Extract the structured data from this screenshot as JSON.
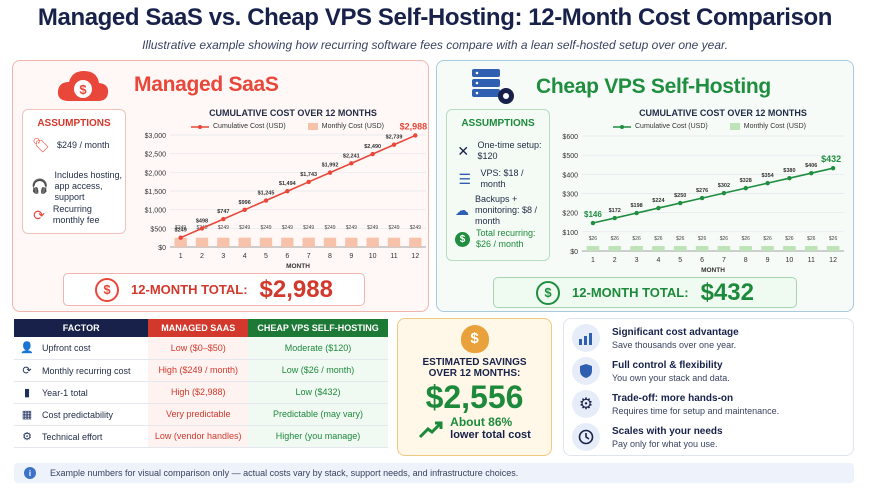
{
  "title": "Managed SaaS vs. Cheap VPS Self-Hosting: 12-Month Cost Comparison",
  "subtitle": "Illustrative example showing how recurring software fees compare with a lean self-hosted setup over one year.",
  "colors": {
    "saas": "#e8473a",
    "vps": "#1f8e3f",
    "navy": "#17214a"
  },
  "saas": {
    "heading": "Managed SaaS",
    "assumptions_title": "ASSUMPTIONS",
    "assumptions": [
      {
        "icon": "price-tag-icon",
        "text": "$249 / month"
      },
      {
        "icon": "headset-icon",
        "text": "Includes hosting, app access, support"
      },
      {
        "icon": "recurring-icon",
        "text": "Recurring monthly fee"
      }
    ],
    "total_label": "12-MONTH TOTAL:",
    "total_value": "$2,988"
  },
  "vps": {
    "heading": "Cheap VPS Self-Hosting",
    "assumptions_title": "ASSUMPTIONS",
    "assumptions": [
      {
        "icon": "tools-icon",
        "text": "One-time setup: $120"
      },
      {
        "icon": "server-icon",
        "text": "VPS: $18 / month"
      },
      {
        "icon": "cloud-backup-icon",
        "text": "Backups + monitoring: $8 / month"
      },
      {
        "icon": "dollar-coin-icon",
        "text": "Total recurring: $26 / month"
      }
    ],
    "total_label": "12-MONTH TOTAL:",
    "total_value": "$432"
  },
  "chart_data": [
    {
      "type": "bar",
      "title": "CUMULATIVE COST OVER 12 MONTHS",
      "xlabel": "MONTH",
      "categories": [
        "1",
        "2",
        "3",
        "4",
        "5",
        "6",
        "7",
        "8",
        "9",
        "10",
        "11",
        "12"
      ],
      "series": [
        {
          "name": "Cumulative Cost (USD)",
          "kind": "line",
          "color": "#e8473a",
          "values": [
            249,
            498,
            747,
            996,
            1245,
            1494,
            1743,
            1992,
            2241,
            2490,
            2739,
            2988
          ],
          "labels": [
            "$249",
            "$498",
            "$747",
            "$996",
            "$1,245",
            "$1,494",
            "$1,743",
            "$1,992",
            "$2,241",
            "$2,490",
            "$2,739",
            "$2,988"
          ]
        },
        {
          "name": "Monthly Cost (USD)",
          "kind": "bar",
          "color": "#f7c2aa",
          "values": [
            249,
            249,
            249,
            249,
            249,
            249,
            249,
            249,
            249,
            249,
            249,
            249
          ],
          "labels": [
            "$249",
            "$249",
            "$249",
            "$249",
            "$249",
            "$249",
            "$249",
            "$249",
            "$249",
            "$249",
            "$249",
            "$249"
          ]
        }
      ],
      "ylim": [
        0,
        3000
      ],
      "yticks": [
        "$0",
        "$500",
        "$1,000",
        "$1,500",
        "$2,000",
        "$2,500",
        "$3,000"
      ],
      "grid": true,
      "legend": "top"
    },
    {
      "type": "bar",
      "title": "CUMULATIVE COST OVER 12 MONTHS",
      "xlabel": "MONTH",
      "categories": [
        "1",
        "2",
        "3",
        "4",
        "5",
        "6",
        "7",
        "8",
        "9",
        "10",
        "11",
        "12"
      ],
      "series": [
        {
          "name": "Cumulative Cost (USD)",
          "kind": "line",
          "color": "#1f8e3f",
          "values": [
            146,
            172,
            198,
            224,
            250,
            276,
            302,
            328,
            354,
            380,
            406,
            432
          ],
          "labels": [
            "$146",
            "$172",
            "$198",
            "$224",
            "$250",
            "$276",
            "$302",
            "$328",
            "$354",
            "$380",
            "$406",
            "$432"
          ]
        },
        {
          "name": "Monthly Cost (USD)",
          "kind": "bar",
          "color": "#bfe3b9",
          "values": [
            26,
            26,
            26,
            26,
            26,
            26,
            26,
            26,
            26,
            26,
            26,
            26
          ],
          "labels": [
            "$26",
            "$26",
            "$26",
            "$26",
            "$26",
            "$26",
            "$26",
            "$26",
            "$26",
            "$26",
            "$26",
            "$26"
          ]
        }
      ],
      "ylim": [
        0,
        600
      ],
      "yticks": [
        "$0",
        "$100",
        "$200",
        "$300",
        "$400",
        "$500",
        "$600"
      ],
      "grid": true,
      "legend": "top"
    }
  ],
  "table": {
    "headers": [
      "FACTOR",
      "MANAGED SAAS",
      "CHEAP VPS SELF-HOSTING"
    ],
    "rows": [
      {
        "icon": "person-icon",
        "factor": "Upfront cost",
        "saas": "Low ($0–$50)",
        "vps": "Moderate ($120)"
      },
      {
        "icon": "refresh-icon",
        "factor": "Monthly recurring cost",
        "saas": "High ($249 / month)",
        "vps": "Low ($26 / month)"
      },
      {
        "icon": "bar-chart-icon",
        "factor": "Year-1 total",
        "saas": "High ($2,988)",
        "vps": "Low ($432)"
      },
      {
        "icon": "calendar-icon",
        "factor": "Cost predictability",
        "saas": "Very predictable",
        "vps": "Predictable (may vary)"
      },
      {
        "icon": "gear-icon",
        "factor": "Technical effort",
        "saas": "Low (vendor handles)",
        "vps": "Higher (you manage)"
      }
    ]
  },
  "savings": {
    "label_line1": "ESTIMATED SAVINGS",
    "label_line2": "OVER 12 MONTHS:",
    "value": "$2,556",
    "pct_line1": "About 86%",
    "pct_line2": "lower total cost"
  },
  "benefits": [
    {
      "icon": "trend-chart-icon",
      "title": "Significant cost advantage",
      "sub": "Save thousands over one year."
    },
    {
      "icon": "shield-icon",
      "title": "Full control & flexibility",
      "sub": "You own your stack and data."
    },
    {
      "icon": "gear-icon",
      "title": "Trade-off: more hands-on",
      "sub": "Requires time for setup and maintenance."
    },
    {
      "icon": "clock-icon",
      "title": "Scales with your needs",
      "sub": "Pay only for what you use."
    }
  ],
  "footnote": "Example numbers for visual comparison only — actual costs vary by stack, support needs, and infrastructure choices."
}
